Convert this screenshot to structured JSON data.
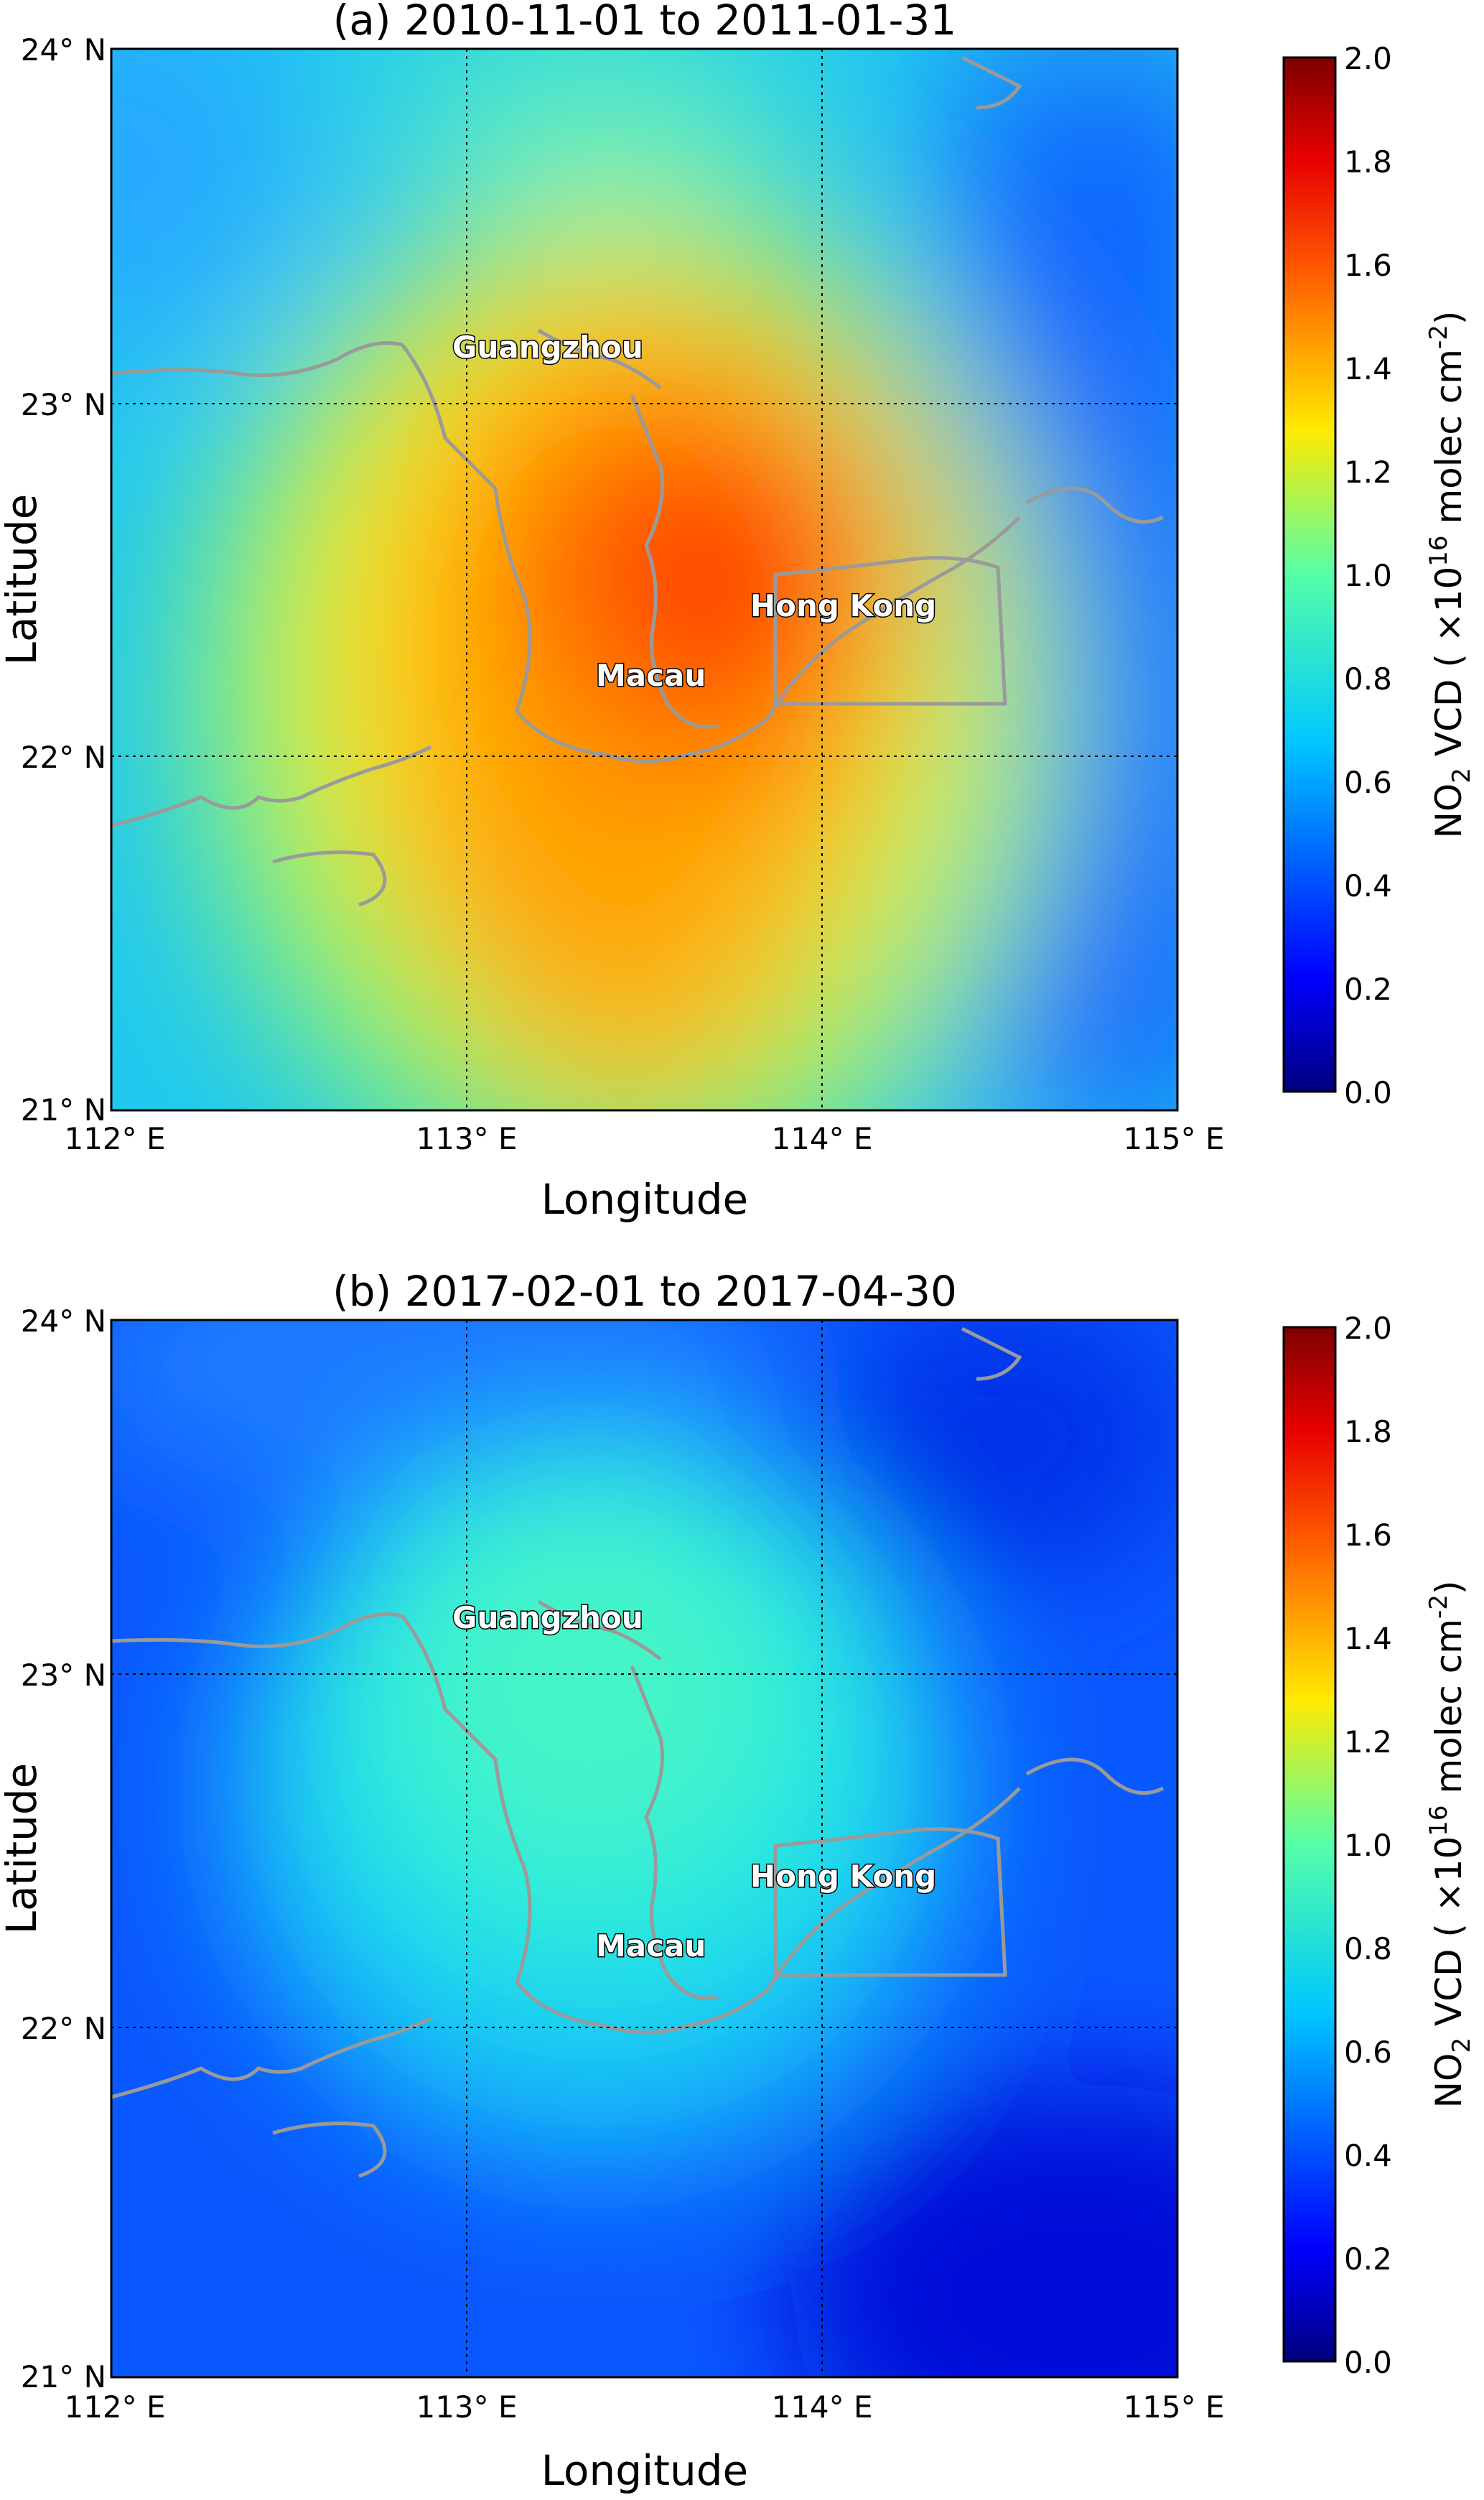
{
  "panels": [
    {
      "title": "(a) 2010-11-01 to 2011-01-31",
      "xlabel": "Longitude",
      "ylabel": "Latitude",
      "x_ticks": [
        "112° E",
        "113° E",
        "114° E",
        "115° E"
      ],
      "y_ticks": [
        "24° N",
        "23° N",
        "22° N",
        "21° N"
      ],
      "cities": [
        "Guangzhou",
        "Hong Kong",
        "Macau"
      ],
      "colorbar": {
        "label_main": "NO",
        "label_sub": "2",
        "label_mid": " VCD ( ×10",
        "label_sup": "16",
        "label_end": "  molec cm",
        "label_sup2": "-2",
        "label_close": ")",
        "ticks": [
          "0.0",
          "0.2",
          "0.4",
          "0.6",
          "0.8",
          "1.0",
          "1.2",
          "1.4",
          "1.6",
          "1.8",
          "2.0"
        ]
      }
    },
    {
      "title": "(b) 2017-02-01 to 2017-04-30",
      "xlabel": "Longitude",
      "ylabel": "Latitude",
      "x_ticks": [
        "112° E",
        "113° E",
        "114° E",
        "115° E"
      ],
      "y_ticks": [
        "24° N",
        "23° N",
        "22° N",
        "21° N"
      ],
      "cities": [
        "Guangzhou",
        "Hong Kong",
        "Macau"
      ],
      "colorbar": {
        "label_main": "NO",
        "label_sub": "2",
        "label_mid": " VCD ( ×10",
        "label_sup": "16",
        "label_end": "  molec cm",
        "label_sup2": "-2",
        "label_close": ")",
        "ticks": [
          "0.0",
          "0.2",
          "0.4",
          "0.6",
          "0.8",
          "1.0",
          "1.2",
          "1.4",
          "1.6",
          "1.8",
          "2.0"
        ]
      }
    }
  ],
  "chart_data": [
    {
      "type": "heatmap",
      "title": "(a) 2010-11-01 to 2011-01-31",
      "xlabel": "Longitude",
      "ylabel": "Latitude",
      "xlim": [
        112,
        115
      ],
      "ylim": [
        21,
        24
      ],
      "colorbar_range": [
        0.0,
        2.0
      ],
      "colormap": "jet",
      "units": "NO2 VCD (×10^16 molec cm^-2)",
      "hotspots": [
        {
          "lon": 113.7,
          "lat": 22.4,
          "value": 1.75,
          "sigma": 0.45
        },
        {
          "lon": 113.3,
          "lat": 21.6,
          "value": 1.45,
          "sigma": 0.45
        }
      ],
      "background_value": 0.7,
      "gridlines": {
        "lon": [
          113,
          114
        ],
        "lat": [
          22,
          23
        ]
      },
      "cities": [
        {
          "name": "Guangzhou",
          "lon": 113.27,
          "lat": 23.15
        },
        {
          "name": "Hong Kong",
          "lon": 114.1,
          "lat": 22.42
        },
        {
          "name": "Macau",
          "lon": 113.55,
          "lat": 22.23
        }
      ]
    },
    {
      "type": "heatmap",
      "title": "(b) 2017-02-01 to 2017-04-30",
      "xlabel": "Longitude",
      "ylabel": "Latitude",
      "xlim": [
        112,
        115
      ],
      "ylim": [
        21,
        24
      ],
      "colorbar_range": [
        0.0,
        2.0
      ],
      "colormap": "jet",
      "units": "NO2 VCD (×10^16 molec cm^-2)",
      "hotspots": [
        {
          "lon": 113.4,
          "lat": 22.8,
          "value": 0.8,
          "sigma": 0.55
        }
      ],
      "background_value": 0.3,
      "gridlines": {
        "lon": [
          113,
          114
        ],
        "lat": [
          22,
          23
        ]
      },
      "cities": [
        {
          "name": "Guangzhou",
          "lon": 113.27,
          "lat": 23.15
        },
        {
          "name": "Hong Kong",
          "lon": 114.1,
          "lat": 22.42
        },
        {
          "name": "Macau",
          "lon": 113.55,
          "lat": 22.23
        }
      ]
    }
  ]
}
